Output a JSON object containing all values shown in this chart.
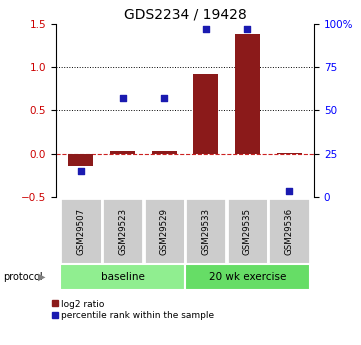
{
  "title": "GDS2234 / 19428",
  "samples": [
    "GSM29507",
    "GSM29523",
    "GSM29529",
    "GSM29533",
    "GSM29535",
    "GSM29536"
  ],
  "log2_ratio": [
    -0.15,
    0.03,
    0.03,
    0.92,
    1.38,
    0.01
  ],
  "percentile_rank": [
    15,
    57,
    57,
    97,
    97,
    3
  ],
  "bar_color": "#8B1A1A",
  "dot_color": "#1A1AB0",
  "left_ylim": [
    -0.5,
    1.5
  ],
  "right_ylim": [
    0,
    100
  ],
  "left_yticks": [
    -0.5,
    0.0,
    0.5,
    1.0,
    1.5
  ],
  "right_yticks": [
    0,
    25,
    50,
    75,
    100
  ],
  "right_yticklabels": [
    "0",
    "25",
    "50",
    "75",
    "100%"
  ],
  "hlines_dotted": [
    0.5,
    1.0
  ],
  "hline_dashed": 0.0,
  "protocol_groups": [
    {
      "label": "baseline",
      "start": 0,
      "end": 3,
      "color": "#90EE90"
    },
    {
      "label": "20 wk exercise",
      "start": 3,
      "end": 6,
      "color": "#66DD66"
    }
  ],
  "legend_red_label": "log2 ratio",
  "legend_blue_label": "percentile rank within the sample",
  "protocol_label": "protocol",
  "title_fontsize": 10,
  "tick_fontsize": 7.5,
  "bar_width": 0.6,
  "sample_box_color": "#CCCCCC",
  "sample_box_edge": "white"
}
